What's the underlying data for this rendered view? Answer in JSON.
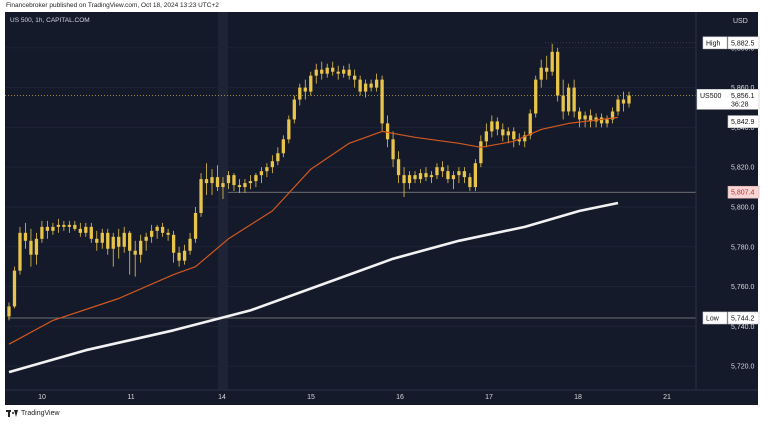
{
  "header": {
    "text": "Financebroker published on TradingView.com, Oct 18, 2024 13:23 UTC+2"
  },
  "footer": {
    "brand": "TradingView"
  },
  "colors": {
    "background": "#151a2b",
    "candle": "#e8c54a",
    "ema_short": "#d2581e",
    "ema_long": "#f2f2f2",
    "level_line": "#8a8a8a",
    "price_line": "#c8b04a",
    "axis_text": "#d9d9d9",
    "support_badge": "#f6d6d6",
    "support_text": "#c62828"
  },
  "chart_data": {
    "type": "candlestick",
    "symbol_label": "US 500, 1h, CAPITAL.COM",
    "currency": "USD",
    "ylim": [
      5708,
      5898
    ],
    "y_ticks": [
      5720,
      5740,
      5760,
      5780,
      5800,
      5820,
      5840,
      5860,
      5880
    ],
    "y_tick_labels": [
      "5,720.0",
      "5,740.0",
      "5,760.0",
      "5,780.0",
      "5,800.0",
      "5,820.0",
      "5,840.0",
      "5,860.0",
      "5,880.0"
    ],
    "x_tick_labels": [
      "10",
      "11",
      "14",
      "15",
      "16",
      "17",
      "18",
      "21"
    ],
    "price_labels": [
      {
        "name": "High",
        "value": 5882.5,
        "text": "5,882.5"
      },
      {
        "name": "US500",
        "value": 5856.1,
        "text": "5,856.1",
        "countdown": "36:28"
      },
      {
        "name": "",
        "value": 5842.9,
        "text": "5,842.9"
      },
      {
        "name": "",
        "value": 5807.4,
        "text": "5,807.4"
      },
      {
        "name": "Low",
        "value": 5744.2,
        "text": "5,744.2"
      }
    ],
    "levels": [
      5807.4,
      5744.2
    ],
    "series": [
      {
        "name": "US500",
        "kind": "ohlc",
        "values": [
          [
            5745,
            5752,
            5743,
            5750
          ],
          [
            5750,
            5770,
            5749,
            5768
          ],
          [
            5768,
            5790,
            5766,
            5787
          ],
          [
            5787,
            5792,
            5779,
            5783
          ],
          [
            5783,
            5789,
            5770,
            5776
          ],
          [
            5776,
            5787,
            5771,
            5784
          ],
          [
            5784,
            5793,
            5782,
            5790
          ],
          [
            5790,
            5793,
            5784,
            5788
          ],
          [
            5788,
            5792,
            5786,
            5790
          ],
          [
            5790,
            5794,
            5787,
            5791
          ],
          [
            5791,
            5793,
            5788,
            5790
          ],
          [
            5790,
            5793,
            5787,
            5791
          ],
          [
            5791,
            5793,
            5788,
            5789
          ],
          [
            5789,
            5792,
            5785,
            5787
          ],
          [
            5787,
            5792,
            5785,
            5790
          ],
          [
            5790,
            5792,
            5782,
            5784
          ],
          [
            5784,
            5788,
            5778,
            5782
          ],
          [
            5782,
            5789,
            5779,
            5787
          ],
          [
            5787,
            5789,
            5776,
            5779
          ],
          [
            5779,
            5787,
            5770,
            5785
          ],
          [
            5785,
            5789,
            5774,
            5780
          ],
          [
            5780,
            5790,
            5777,
            5787
          ],
          [
            5787,
            5788,
            5766,
            5778
          ],
          [
            5778,
            5783,
            5765,
            5776
          ],
          [
            5776,
            5786,
            5772,
            5783
          ],
          [
            5783,
            5787,
            5778,
            5785
          ],
          [
            5785,
            5791,
            5782,
            5788
          ],
          [
            5788,
            5791,
            5784,
            5790
          ],
          [
            5790,
            5792,
            5785,
            5787
          ],
          [
            5787,
            5789,
            5783,
            5786
          ],
          [
            5786,
            5788,
            5772,
            5777
          ],
          [
            5777,
            5780,
            5770,
            5773
          ],
          [
            5773,
            5781,
            5771,
            5778
          ],
          [
            5778,
            5787,
            5776,
            5784
          ],
          [
            5784,
            5800,
            5782,
            5797
          ],
          [
            5797,
            5817,
            5795,
            5814
          ],
          [
            5814,
            5822,
            5806,
            5812
          ],
          [
            5812,
            5819,
            5806,
            5815
          ],
          [
            5815,
            5821,
            5808,
            5810
          ],
          [
            5810,
            5815,
            5804,
            5812
          ],
          [
            5812,
            5818,
            5809,
            5816
          ],
          [
            5816,
            5817,
            5808,
            5811
          ],
          [
            5811,
            5814,
            5807,
            5810
          ],
          [
            5810,
            5814,
            5807,
            5812
          ],
          [
            5812,
            5816,
            5809,
            5813
          ],
          [
            5813,
            5817,
            5810,
            5816
          ],
          [
            5816,
            5820,
            5812,
            5818
          ],
          [
            5818,
            5822,
            5815,
            5820
          ],
          [
            5820,
            5826,
            5817,
            5823
          ],
          [
            5823,
            5830,
            5821,
            5827
          ],
          [
            5827,
            5836,
            5825,
            5834
          ],
          [
            5834,
            5846,
            5832,
            5844
          ],
          [
            5844,
            5856,
            5842,
            5854
          ],
          [
            5854,
            5862,
            5851,
            5860
          ],
          [
            5860,
            5864,
            5854,
            5858
          ],
          [
            5858,
            5868,
            5856,
            5866
          ],
          [
            5866,
            5872,
            5862,
            5869
          ],
          [
            5869,
            5873,
            5864,
            5867
          ],
          [
            5867,
            5872,
            5865,
            5870
          ],
          [
            5870,
            5873,
            5866,
            5868
          ],
          [
            5868,
            5871,
            5864,
            5867
          ],
          [
            5867,
            5871,
            5865,
            5869
          ],
          [
            5869,
            5872,
            5864,
            5866
          ],
          [
            5866,
            5869,
            5860,
            5864
          ],
          [
            5864,
            5866,
            5856,
            5858
          ],
          [
            5858,
            5864,
            5855,
            5862
          ],
          [
            5862,
            5864,
            5858,
            5860
          ],
          [
            5860,
            5867,
            5858,
            5864
          ],
          [
            5864,
            5866,
            5838,
            5842
          ],
          [
            5842,
            5846,
            5830,
            5834
          ],
          [
            5834,
            5838,
            5820,
            5824
          ],
          [
            5824,
            5828,
            5812,
            5816
          ],
          [
            5816,
            5820,
            5805,
            5812
          ],
          [
            5812,
            5818,
            5809,
            5816
          ],
          [
            5816,
            5818,
            5812,
            5814
          ],
          [
            5814,
            5819,
            5812,
            5817
          ],
          [
            5817,
            5820,
            5813,
            5815
          ],
          [
            5815,
            5818,
            5812,
            5816
          ],
          [
            5816,
            5822,
            5814,
            5820
          ],
          [
            5820,
            5823,
            5815,
            5818
          ],
          [
            5818,
            5821,
            5812,
            5814
          ],
          [
            5814,
            5818,
            5809,
            5816
          ],
          [
            5816,
            5820,
            5812,
            5818
          ],
          [
            5818,
            5820,
            5812,
            5815
          ],
          [
            5815,
            5817,
            5808,
            5810
          ],
          [
            5810,
            5824,
            5808,
            5822
          ],
          [
            5822,
            5836,
            5820,
            5833
          ],
          [
            5833,
            5842,
            5830,
            5838
          ],
          [
            5838,
            5846,
            5835,
            5843
          ],
          [
            5843,
            5845,
            5836,
            5839
          ],
          [
            5839,
            5842,
            5833,
            5836
          ],
          [
            5836,
            5840,
            5832,
            5838
          ],
          [
            5838,
            5840,
            5830,
            5834
          ],
          [
            5834,
            5837,
            5831,
            5833
          ],
          [
            5833,
            5838,
            5830,
            5836
          ],
          [
            5836,
            5849,
            5834,
            5847
          ],
          [
            5847,
            5866,
            5845,
            5864
          ],
          [
            5864,
            5874,
            5860,
            5870
          ],
          [
            5870,
            5876,
            5864,
            5868
          ],
          [
            5868,
            5882,
            5866,
            5878
          ],
          [
            5878,
            5880,
            5853,
            5856
          ],
          [
            5856,
            5864,
            5844,
            5848
          ],
          [
            5848,
            5862,
            5846,
            5860
          ],
          [
            5860,
            5864,
            5845,
            5848
          ],
          [
            5848,
            5850,
            5840,
            5844
          ],
          [
            5844,
            5848,
            5840,
            5846
          ],
          [
            5846,
            5849,
            5840,
            5843
          ],
          [
            5843,
            5847,
            5840,
            5845
          ],
          [
            5845,
            5847,
            5840,
            5842
          ],
          [
            5842,
            5846,
            5840,
            5844
          ],
          [
            5844,
            5850,
            5842,
            5848
          ],
          [
            5848,
            5856,
            5846,
            5854
          ],
          [
            5854,
            5858,
            5848,
            5852
          ],
          [
            5852,
            5858,
            5850,
            5856
          ]
        ]
      },
      {
        "name": "",
        "kind": "line",
        "values": [
          [
            0,
            5731
          ],
          [
            8,
            5743
          ],
          [
            20,
            5754
          ],
          [
            30,
            5766
          ],
          [
            34,
            5770
          ],
          [
            40,
            5784
          ],
          [
            48,
            5798
          ],
          [
            55,
            5819
          ],
          [
            62,
            5832
          ],
          [
            68,
            5838
          ],
          [
            74,
            5835
          ],
          [
            82,
            5832
          ],
          [
            86,
            5830
          ],
          [
            92,
            5833
          ],
          [
            97,
            5839
          ],
          [
            102,
            5842
          ],
          [
            111,
            5845
          ]
        ]
      },
      {
        "name": "",
        "kind": "line",
        "values": [
          [
            0,
            5717
          ],
          [
            14,
            5728
          ],
          [
            30,
            5738
          ],
          [
            44,
            5748
          ],
          [
            58,
            5762
          ],
          [
            70,
            5774
          ],
          [
            82,
            5783
          ],
          [
            94,
            5790
          ],
          [
            104,
            5798
          ],
          [
            111,
            5802
          ]
        ]
      }
    ]
  }
}
